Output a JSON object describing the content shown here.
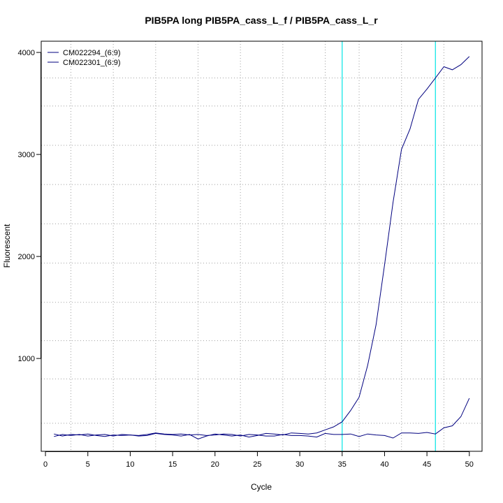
{
  "chart_data": {
    "type": "line",
    "title": "PIB5PA long PIB5PA_cass_L_f / PIB5PA_cass_L_r",
    "xlabel": "Cycle",
    "ylabel": "Fluorescent",
    "xlim": [
      -0.5,
      51.5
    ],
    "ylim": [
      90,
      4110
    ],
    "x_ticks": [
      0,
      5,
      10,
      15,
      20,
      25,
      30,
      35,
      40,
      45,
      50
    ],
    "y_ticks": [
      1000,
      2000,
      3000,
      4000
    ],
    "grid": "dotted",
    "legend_position": "top-left",
    "threshold_lines_x": [
      35,
      46
    ],
    "colors": {
      "series": "#00007f",
      "threshold": "#00e5e5",
      "grid": "#a0a0a0"
    },
    "series": [
      {
        "name": "CM022294_(6:9)",
        "x": [
          1,
          2,
          3,
          4,
          5,
          6,
          7,
          8,
          9,
          10,
          11,
          12,
          13,
          14,
          15,
          16,
          17,
          18,
          19,
          20,
          21,
          22,
          23,
          24,
          25,
          26,
          27,
          28,
          29,
          30,
          31,
          32,
          33,
          34,
          35,
          36,
          37,
          38,
          39,
          40,
          41,
          42,
          43,
          44,
          45,
          46,
          47,
          48,
          49,
          50
        ],
        "values": [
          260,
          240,
          255,
          250,
          260,
          245,
          235,
          250,
          245,
          250,
          240,
          245,
          265,
          255,
          250,
          240,
          255,
          210,
          240,
          260,
          250,
          240,
          250,
          230,
          245,
          265,
          260,
          250,
          270,
          265,
          260,
          270,
          300,
          330,
          380,
          490,
          620,
          930,
          1330,
          1920,
          2530,
          3050,
          3250,
          3540,
          3640,
          3750,
          3860,
          3830,
          3880,
          3960
        ]
      },
      {
        "name": "CM022301_(6:9)",
        "x": [
          1,
          2,
          3,
          4,
          5,
          6,
          7,
          8,
          9,
          10,
          11,
          12,
          13,
          14,
          15,
          16,
          17,
          18,
          19,
          20,
          21,
          22,
          23,
          24,
          25,
          26,
          27,
          28,
          29,
          30,
          31,
          32,
          33,
          34,
          35,
          36,
          37,
          38,
          39,
          40,
          41,
          42,
          43,
          44,
          45,
          46,
          47,
          48,
          49,
          50
        ],
        "values": [
          235,
          255,
          245,
          255,
          240,
          250,
          255,
          240,
          255,
          250,
          245,
          255,
          270,
          260,
          255,
          260,
          250,
          255,
          245,
          250,
          260,
          255,
          240,
          255,
          250,
          240,
          240,
          255,
          245,
          245,
          240,
          230,
          265,
          255,
          255,
          260,
          235,
          260,
          250,
          245,
          220,
          270,
          270,
          265,
          275,
          260,
          320,
          340,
          430,
          610
        ]
      }
    ]
  }
}
